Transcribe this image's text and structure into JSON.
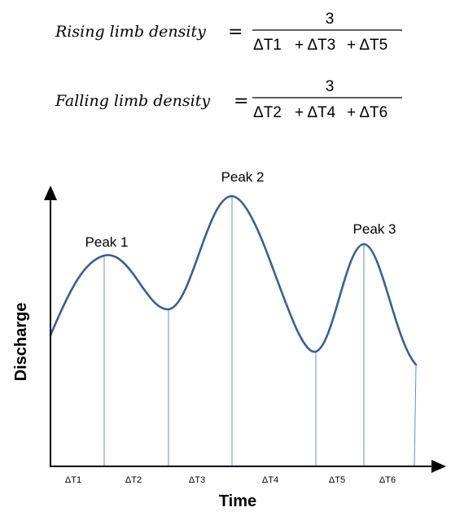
{
  "formulas": {
    "rising": {
      "label": "Rising limb density",
      "equals": "=",
      "numerator": "3",
      "denominator": [
        "ΔT1",
        "+ ΔT3",
        "+ ΔT5"
      ]
    },
    "falling": {
      "label": "Falling limb density",
      "equals": "=",
      "numerator": "3",
      "denominator": [
        "ΔT2",
        "+ ΔT4",
        "+ ΔT6"
      ]
    }
  },
  "hydrograph": {
    "peaks": [
      {
        "label": "Peak 1"
      },
      {
        "label": "Peak 2"
      },
      {
        "label": "Peak 3"
      }
    ],
    "intervals": [
      "ΔT1",
      "ΔT2",
      "ΔT3",
      "ΔT4",
      "ΔT5",
      "ΔT6"
    ],
    "xlabel": "Time",
    "ylabel": "Discharge",
    "curve_color": "#3b5f8f",
    "guide_color": "#5a8fd0",
    "axis_color": "#000000"
  }
}
